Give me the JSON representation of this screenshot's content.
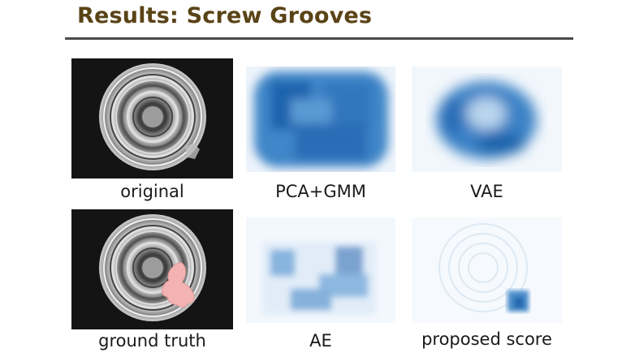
{
  "slide": {
    "title": "Results: Screw Grooves",
    "panels": [
      {
        "id": "original",
        "caption": "original"
      },
      {
        "id": "pca_gmm",
        "caption": "PCA+GMM"
      },
      {
        "id": "vae",
        "caption": "VAE"
      },
      {
        "id": "ground_truth",
        "caption": "ground truth"
      },
      {
        "id": "ae",
        "caption": "AE"
      },
      {
        "id": "proposed",
        "caption": "proposed score"
      }
    ]
  },
  "colors": {
    "title": "#5a4316",
    "rule": "#4a4a4a",
    "heat_dark": "#1f5fa8",
    "heat_light": "#e9f1fb",
    "anomaly_mask": "#f4b3b3"
  }
}
